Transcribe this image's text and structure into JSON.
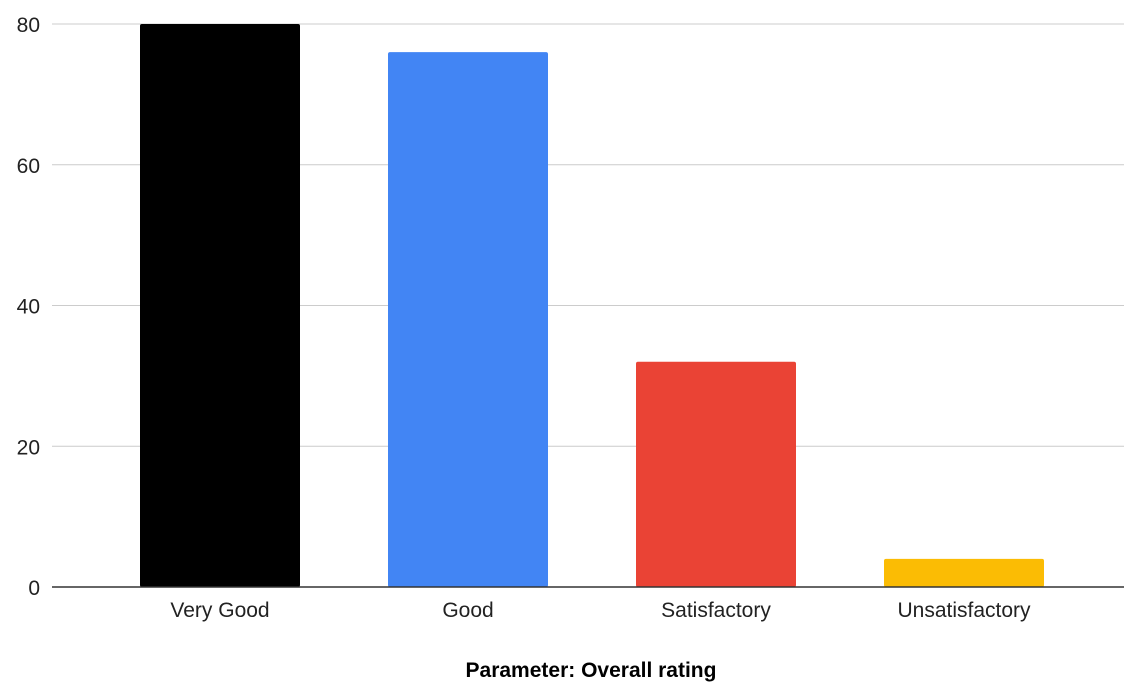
{
  "chart_data": {
    "type": "bar",
    "categories": [
      "Very Good",
      "Good",
      "Satisfactory",
      "Unsatisfactory"
    ],
    "values": [
      80,
      76,
      32,
      4
    ],
    "colors": [
      "#000000",
      "#4285f4",
      "#ea4335",
      "#fbbc04"
    ],
    "title": "",
    "xlabel": "Parameter: Overall rating",
    "ylabel": "",
    "ylim": [
      0,
      80
    ],
    "yticks": [
      0,
      20,
      40,
      60,
      80
    ],
    "grid": true,
    "legend": "none"
  }
}
